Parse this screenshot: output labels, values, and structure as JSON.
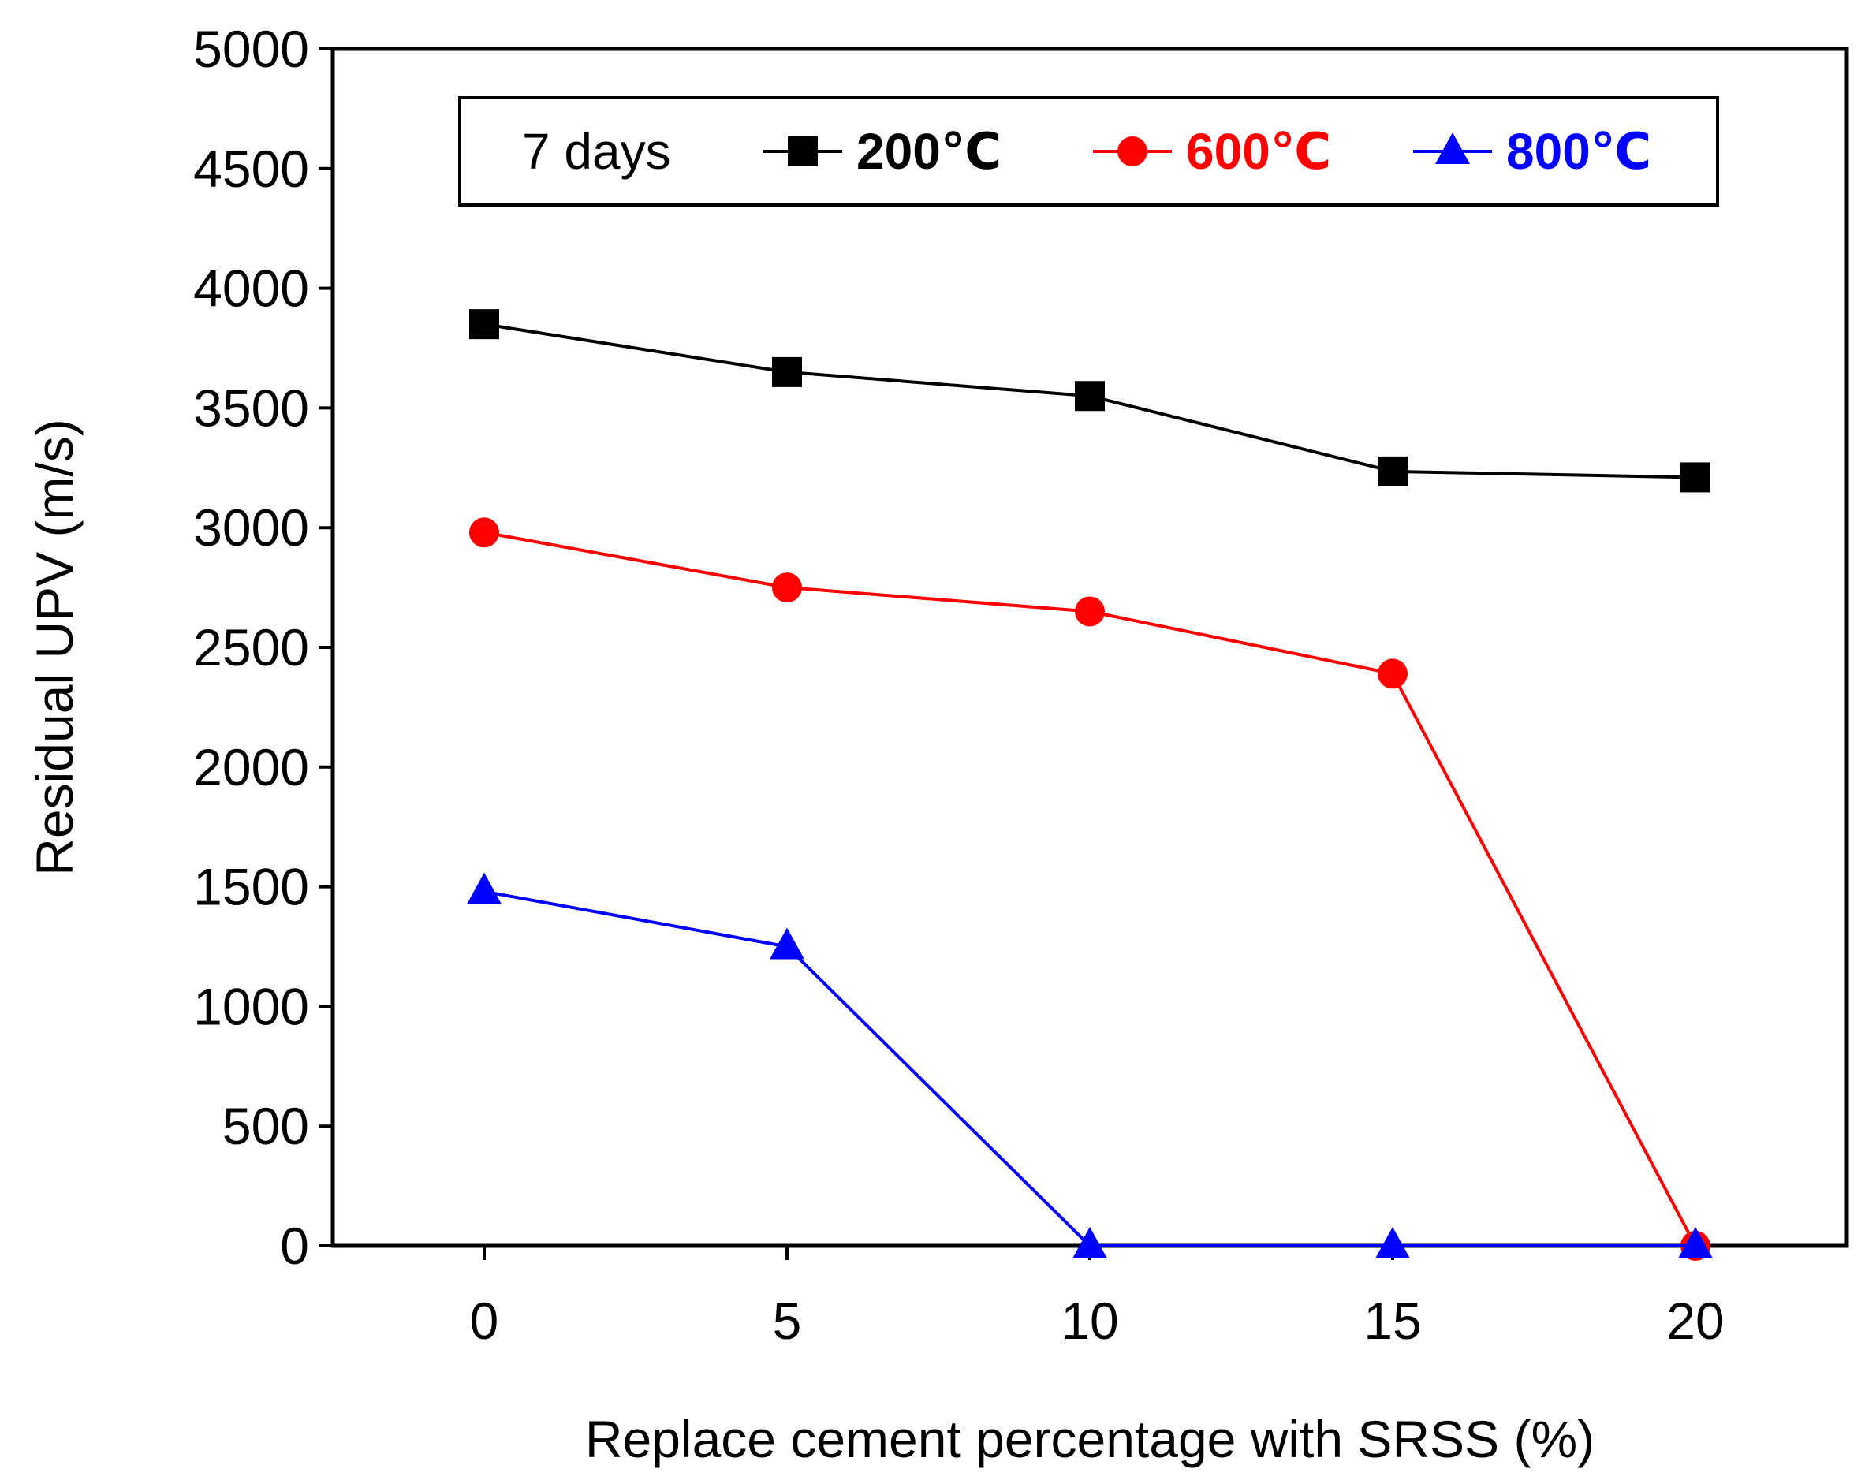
{
  "chart_data": {
    "type": "line",
    "title": "",
    "xlabel": "Replace cement percentage with SRSS (%)",
    "ylabel": "Residual UPV (m/s)",
    "x": [
      0,
      5,
      10,
      15,
      20
    ],
    "xlim": [
      -2.5,
      22.5
    ],
    "ylim": [
      0,
      5000
    ],
    "xticks": [
      0,
      5,
      10,
      15,
      20
    ],
    "yticks": [
      0,
      500,
      1000,
      1500,
      2000,
      2500,
      3000,
      3500,
      4000,
      4500,
      5000
    ],
    "grid": false,
    "legend": {
      "caption": "7 days",
      "placement": "top"
    },
    "series": [
      {
        "name": "200℃",
        "marker": "square",
        "color": "#000000",
        "values": [
          3850,
          3650,
          3550,
          3235,
          3210
        ]
      },
      {
        "name": "600℃",
        "marker": "circle",
        "color": "#ff0000",
        "values": [
          2980,
          2750,
          2650,
          2390,
          0
        ]
      },
      {
        "name": "800℃",
        "marker": "triangle",
        "color": "#0000ff",
        "values": [
          1480,
          1250,
          0,
          0,
          0
        ]
      }
    ]
  }
}
